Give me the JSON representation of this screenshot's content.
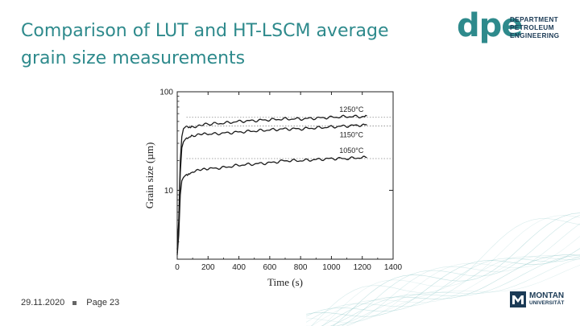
{
  "slide": {
    "title": "Comparison of LUT and HT-LSCM average grain size measurements",
    "date": "29.11.2020",
    "page": "Page 23"
  },
  "logo_dpe": {
    "mark": "dpe",
    "lines": [
      "DEPARTMENT",
      "PETROLEUM",
      "ENGINEERING"
    ]
  },
  "logo_montan": {
    "line1": "MONTAN",
    "line2": "UNIVERSITÄT"
  },
  "colors": {
    "title": "#2e8a8c",
    "logo_dark": "#1c3b56",
    "wave": "#8fc9c9"
  },
  "chart_data": {
    "type": "line",
    "xlabel": "Time (s)",
    "ylabel": "Grain size (µm)",
    "xlim": [
      0,
      1400
    ],
    "ylim": [
      2,
      100
    ],
    "yscale": "log",
    "x_ticks": [
      0,
      200,
      400,
      600,
      800,
      1000,
      1200,
      1400
    ],
    "y_ticks": [
      10,
      100
    ],
    "series": [
      {
        "name": "1250°C",
        "reference_level": 55,
        "x": [
          0,
          10,
          20,
          30,
          40,
          60,
          80,
          100,
          150,
          200,
          300,
          400,
          500,
          600,
          700,
          800,
          900,
          1000,
          1100,
          1200,
          1230
        ],
        "y": [
          2.5,
          5,
          20,
          35,
          42,
          45,
          43,
          44,
          46,
          47,
          48,
          50,
          51,
          52,
          53,
          53,
          54,
          55,
          56,
          56,
          57
        ]
      },
      {
        "name": "1150°C",
        "reference_level": 45,
        "x": [
          0,
          10,
          20,
          30,
          40,
          60,
          80,
          100,
          150,
          200,
          300,
          400,
          500,
          600,
          700,
          800,
          900,
          1000,
          1100,
          1200,
          1230
        ],
        "y": [
          2.3,
          4,
          15,
          27,
          31,
          34,
          35,
          36,
          37,
          37,
          38,
          39,
          40,
          41,
          42,
          42,
          43,
          44,
          45,
          46,
          46
        ]
      },
      {
        "name": "1050°C",
        "reference_level": 21,
        "x": [
          0,
          10,
          20,
          30,
          40,
          60,
          80,
          100,
          150,
          200,
          300,
          400,
          500,
          600,
          700,
          800,
          900,
          1000,
          1100,
          1200,
          1230
        ],
        "y": [
          2.2,
          3.5,
          9,
          12.5,
          13.5,
          14.5,
          15,
          15.5,
          16,
          16.5,
          17,
          18,
          18.5,
          19,
          20,
          20,
          20.5,
          21,
          21,
          21.5,
          21.5
        ]
      }
    ]
  }
}
